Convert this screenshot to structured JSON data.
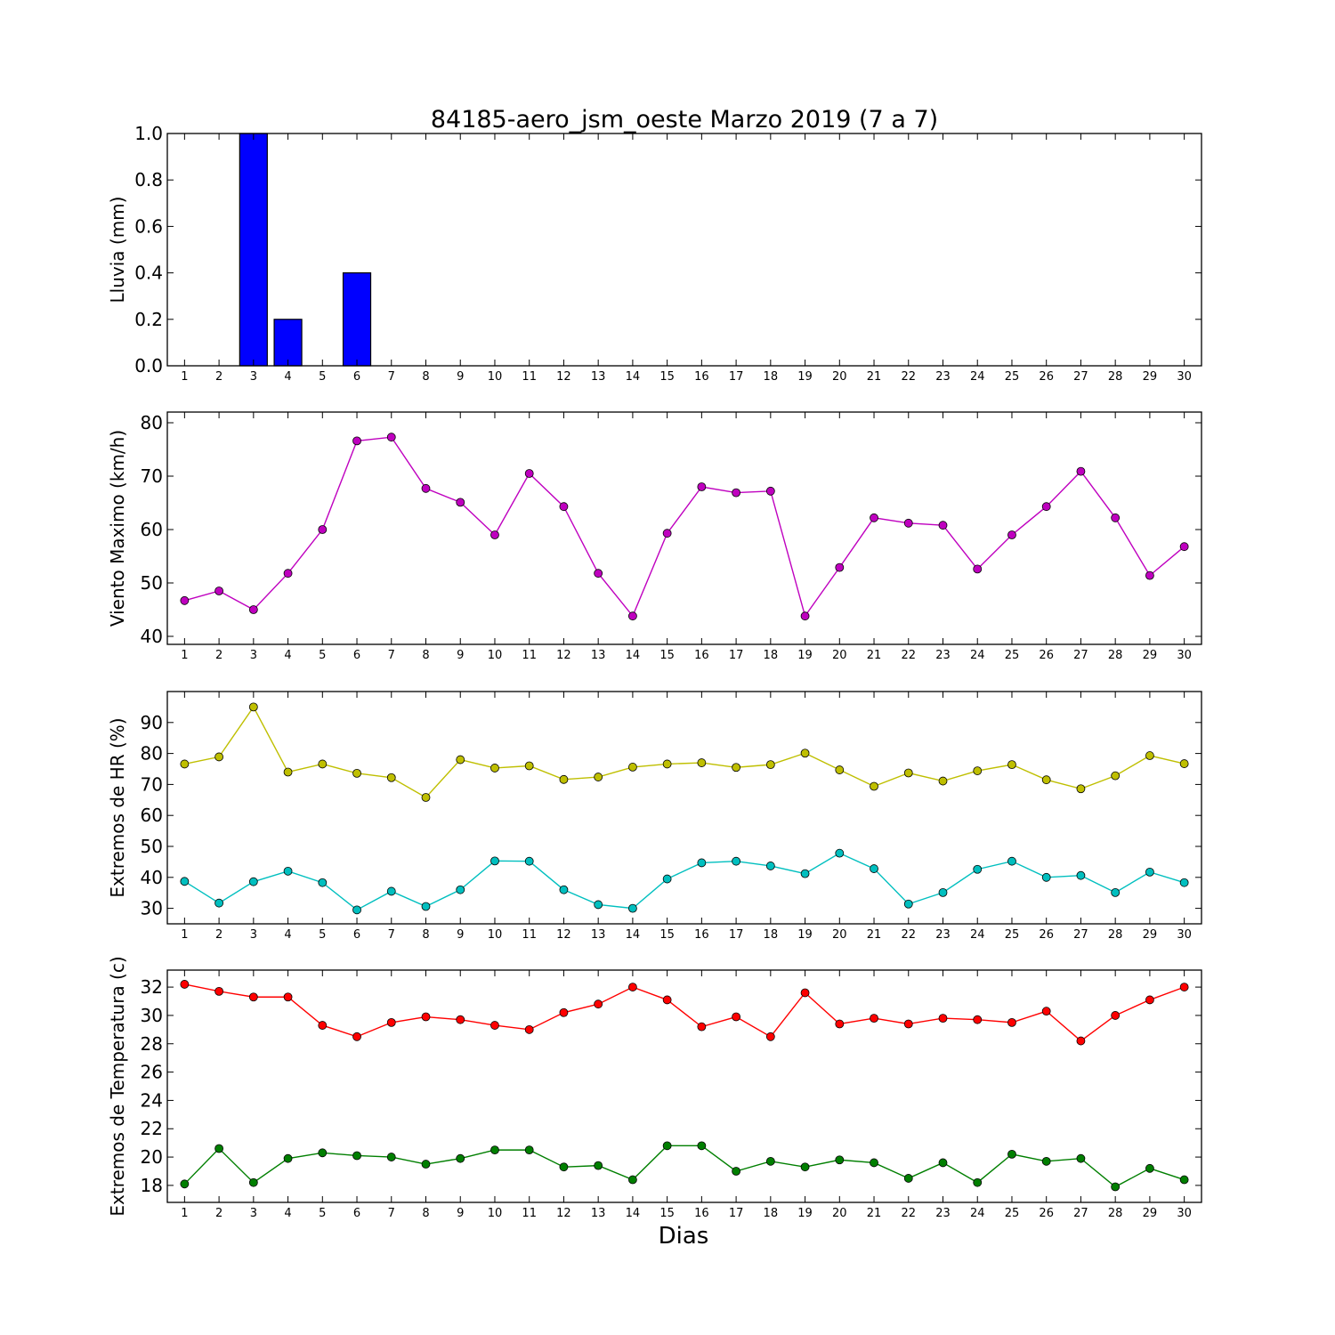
{
  "figure_title": "84185-aero_jsm_oeste Marzo 2019  (7 a 7)",
  "xlabel": "Dias",
  "colors": {
    "rain": "#0000ff",
    "wind": "#bf00bf",
    "hr_max": "#bfbf00",
    "hr_min": "#00bfbf",
    "temp_max": "#ff0000",
    "temp_min": "#007f00"
  },
  "chart_data": [
    {
      "type": "bar",
      "ylabel": "Lluvia (mm)",
      "ylim": [
        0,
        1.0
      ],
      "yticks": [
        0.0,
        0.2,
        0.4,
        0.6,
        0.8,
        1.0
      ],
      "ytick_labels": [
        "0.0",
        "0.2",
        "0.4",
        "0.6",
        "0.8",
        "1.0"
      ],
      "categories": [
        "1",
        "2",
        "3",
        "4",
        "5",
        "6",
        "7",
        "8",
        "9",
        "10",
        "11",
        "12",
        "13",
        "14",
        "15",
        "16",
        "17",
        "18",
        "19",
        "20",
        "21",
        "22",
        "23",
        "24",
        "25",
        "26",
        "27",
        "28",
        "29",
        "30"
      ],
      "series": [
        {
          "color": "#0000ff",
          "values": [
            0,
            0,
            1.0,
            0.2,
            0,
            0.4,
            0,
            0,
            0,
            0,
            0,
            0,
            0,
            0,
            0,
            0,
            0,
            0,
            0,
            0,
            0,
            0,
            0,
            0,
            0,
            0,
            0,
            0,
            0,
            0
          ]
        }
      ]
    },
    {
      "type": "line",
      "ylabel": "Viento Maximo (km/h)",
      "ylim": [
        38.5,
        82
      ],
      "yticks": [
        40,
        50,
        60,
        70,
        80
      ],
      "ytick_labels": [
        "40",
        "50",
        "60",
        "70",
        "80"
      ],
      "categories": [
        "1",
        "2",
        "3",
        "4",
        "5",
        "6",
        "7",
        "8",
        "9",
        "10",
        "11",
        "12",
        "13",
        "14",
        "15",
        "16",
        "17",
        "18",
        "19",
        "20",
        "21",
        "22",
        "23",
        "24",
        "25",
        "26",
        "27",
        "28",
        "29",
        "30"
      ],
      "series": [
        {
          "color": "#bf00bf",
          "values": [
            46.7,
            48.5,
            45.0,
            51.8,
            60.0,
            76.6,
            77.3,
            67.7,
            65.1,
            59.0,
            70.5,
            64.3,
            51.8,
            43.8,
            59.3,
            68.0,
            66.9,
            67.2,
            43.8,
            52.9,
            62.2,
            61.2,
            60.8,
            52.6,
            59.0,
            64.3,
            70.9,
            62.2,
            51.4,
            56.8
          ]
        }
      ]
    },
    {
      "type": "line",
      "ylabel": "Extremos de HR (%)",
      "ylim": [
        25,
        100
      ],
      "yticks": [
        30,
        40,
        50,
        60,
        70,
        80,
        90
      ],
      "ytick_labels": [
        "30",
        "40",
        "50",
        "60",
        "70",
        "80",
        "90"
      ],
      "categories": [
        "1",
        "2",
        "3",
        "4",
        "5",
        "6",
        "7",
        "8",
        "9",
        "10",
        "11",
        "12",
        "13",
        "14",
        "15",
        "16",
        "17",
        "18",
        "19",
        "20",
        "21",
        "22",
        "23",
        "24",
        "25",
        "26",
        "27",
        "28",
        "29",
        "30"
      ],
      "series": [
        {
          "color": "#bfbf00",
          "values": [
            76.6,
            78.9,
            95.0,
            74.0,
            76.6,
            73.6,
            72.2,
            65.8,
            78.0,
            75.3,
            76.0,
            71.6,
            72.4,
            75.6,
            76.6,
            77.0,
            75.5,
            76.4,
            80.1,
            74.7,
            69.4,
            73.7,
            71.1,
            74.4,
            76.4,
            71.5,
            68.6,
            72.8,
            79.3,
            76.7
          ]
        },
        {
          "color": "#00bfbf",
          "values": [
            38.7,
            31.7,
            38.6,
            42.0,
            38.3,
            29.5,
            35.5,
            30.6,
            36.0,
            45.3,
            45.2,
            36.0,
            31.2,
            30.0,
            39.5,
            44.7,
            45.2,
            43.7,
            41.2,
            47.8,
            42.8,
            31.4,
            35.1,
            42.6,
            45.2,
            40.0,
            40.6,
            35.1,
            41.7,
            38.3
          ]
        }
      ]
    },
    {
      "type": "line",
      "ylabel": "Extremos de Temperatura (c)",
      "ylim": [
        16.8,
        33.2
      ],
      "yticks": [
        18,
        20,
        22,
        24,
        26,
        28,
        30,
        32
      ],
      "ytick_labels": [
        "18",
        "20",
        "22",
        "24",
        "26",
        "28",
        "30",
        "32"
      ],
      "categories": [
        "1",
        "2",
        "3",
        "4",
        "5",
        "6",
        "7",
        "8",
        "9",
        "10",
        "11",
        "12",
        "13",
        "14",
        "15",
        "16",
        "17",
        "18",
        "19",
        "20",
        "21",
        "22",
        "23",
        "24",
        "25",
        "26",
        "27",
        "28",
        "29",
        "30"
      ],
      "series": [
        {
          "color": "#ff0000",
          "values": [
            32.2,
            31.7,
            31.3,
            31.3,
            29.3,
            28.5,
            29.5,
            29.9,
            29.7,
            29.3,
            29.0,
            30.2,
            30.8,
            32.0,
            31.1,
            29.2,
            29.9,
            28.5,
            31.6,
            29.4,
            29.8,
            29.4,
            29.8,
            29.7,
            29.5,
            30.3,
            28.2,
            30.0,
            31.1,
            32.0
          ]
        },
        {
          "color": "#007f00",
          "values": [
            18.1,
            20.6,
            18.2,
            19.9,
            20.3,
            20.1,
            20.0,
            19.5,
            19.9,
            20.5,
            20.5,
            19.3,
            19.4,
            18.4,
            20.8,
            20.8,
            19.0,
            19.7,
            19.3,
            19.8,
            19.6,
            18.5,
            19.6,
            18.2,
            20.2,
            19.7,
            19.9,
            17.9,
            19.2,
            18.4
          ]
        }
      ]
    }
  ]
}
